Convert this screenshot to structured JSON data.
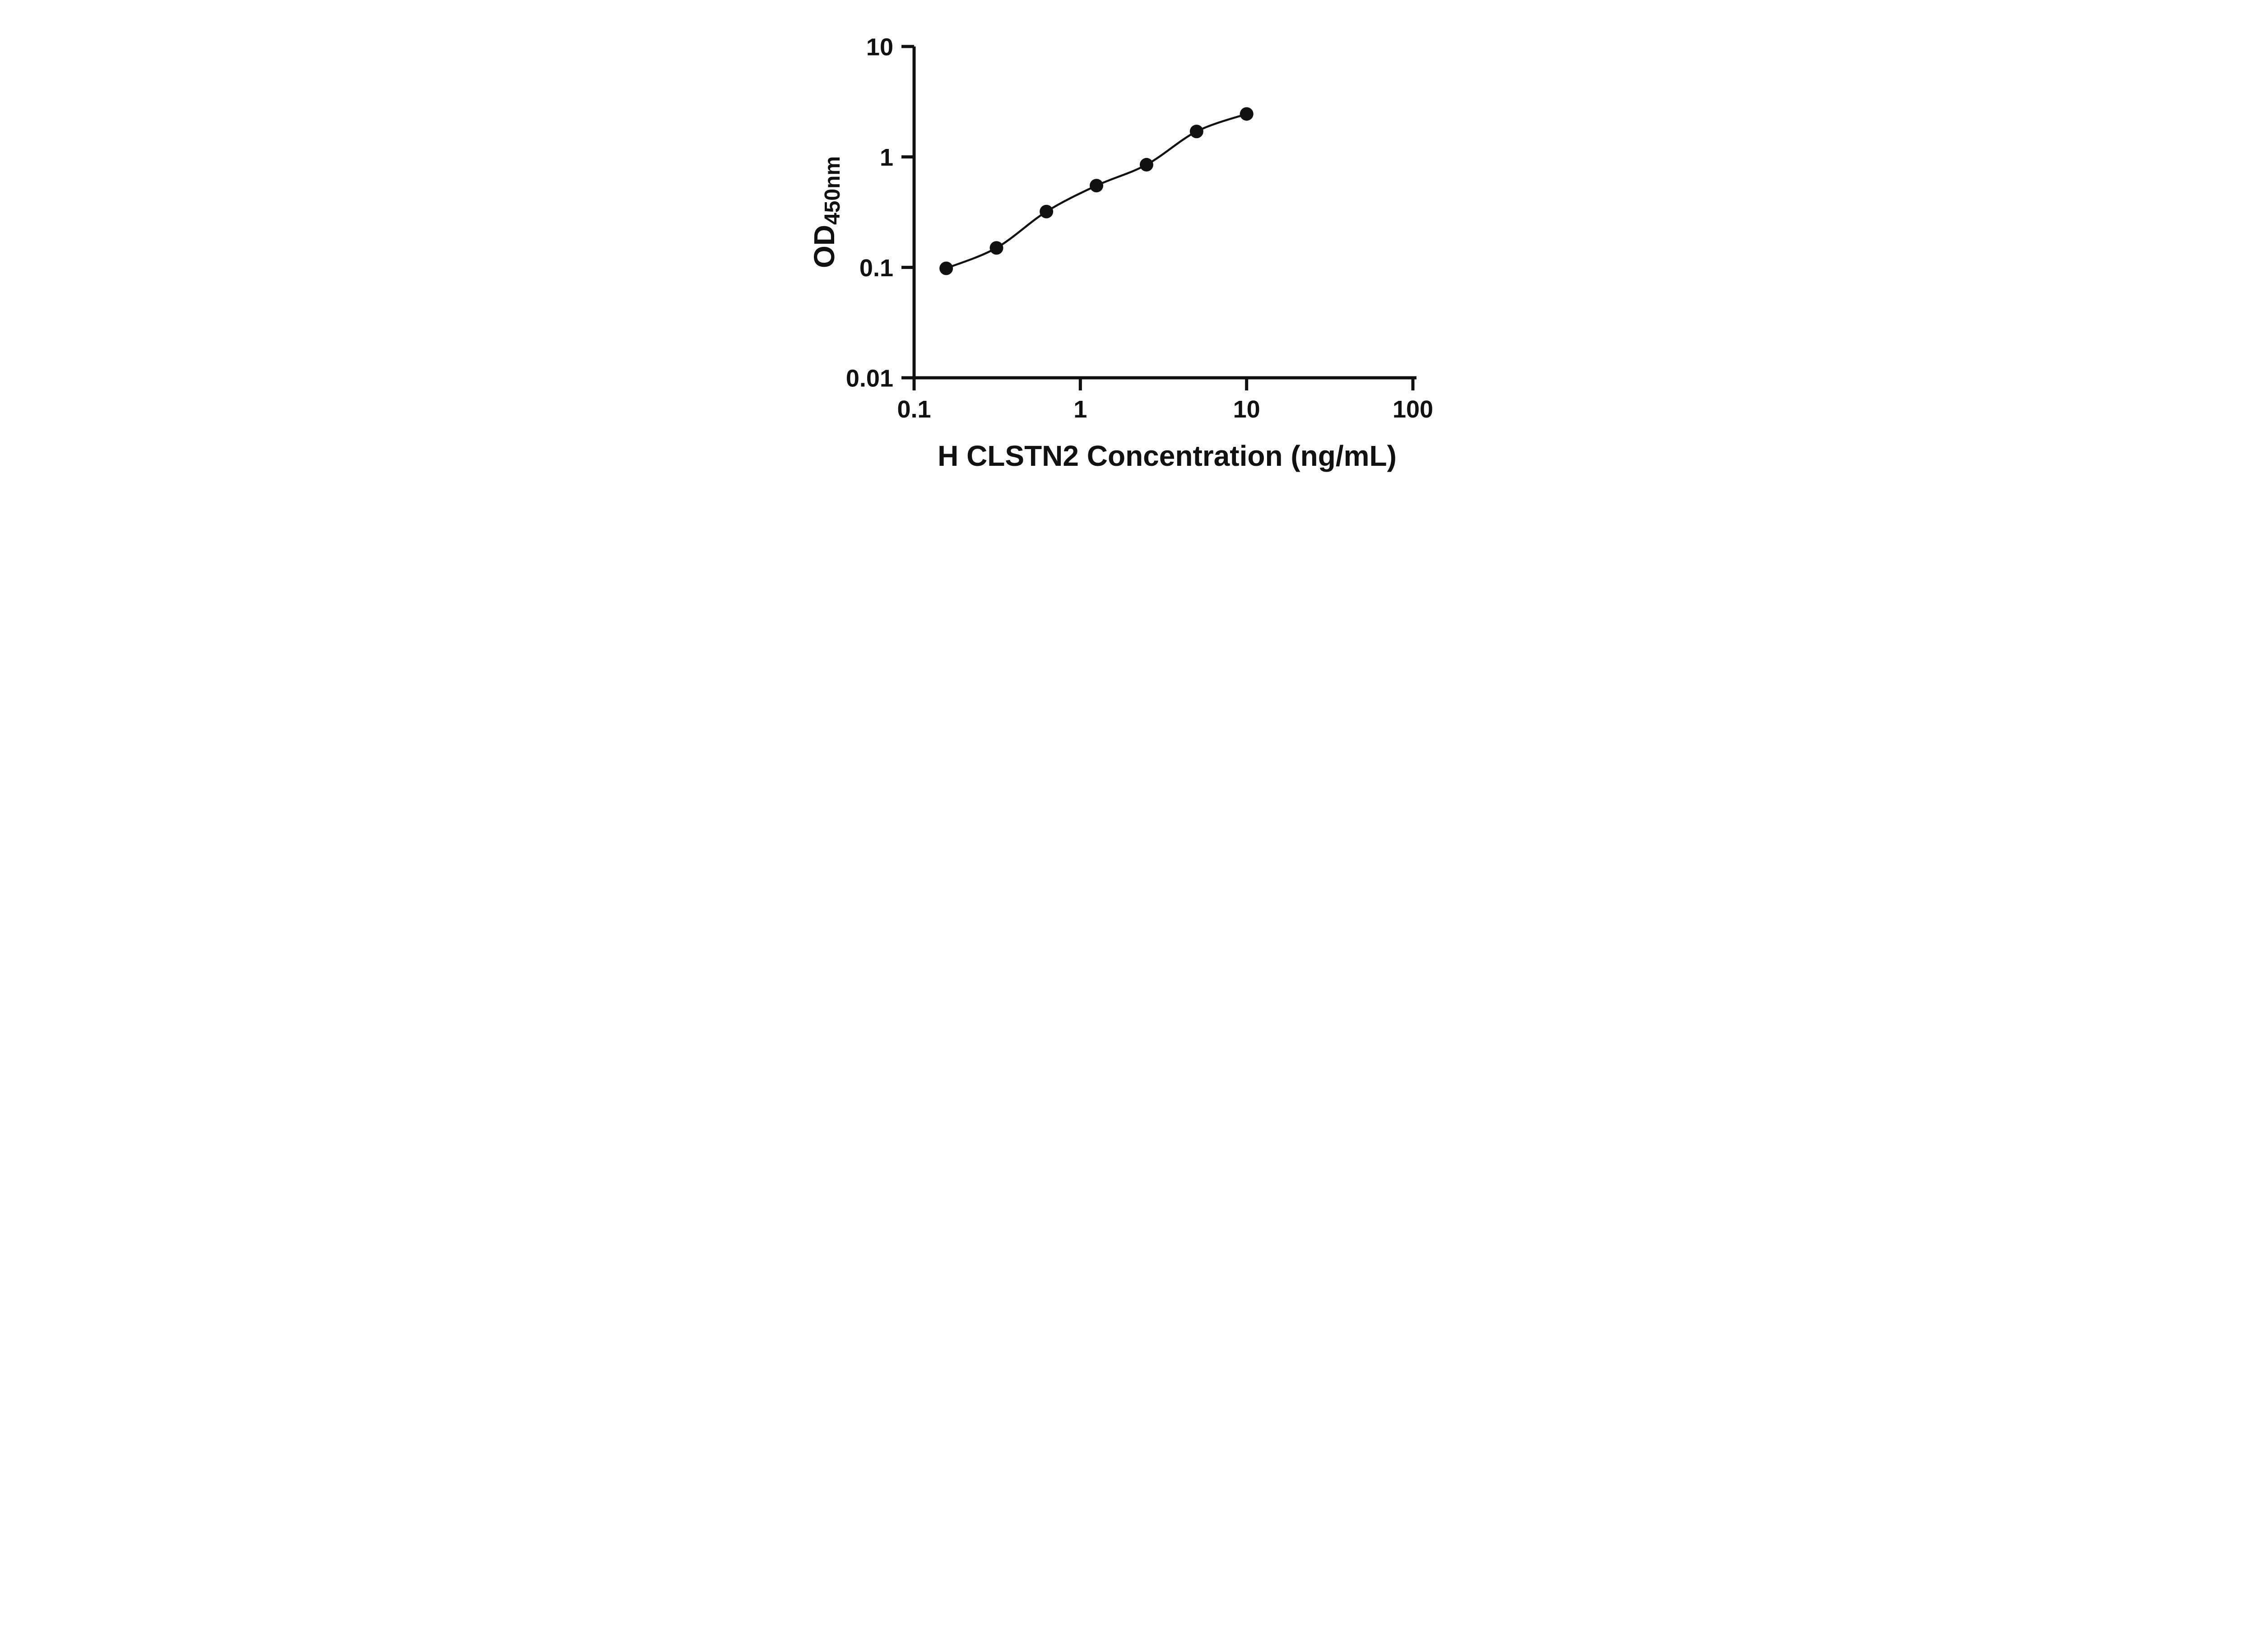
{
  "figure": {
    "background": "#ffffff"
  },
  "chart_data": {
    "type": "scatter",
    "title": "",
    "xlabel": "H CLSTN2 Concentration (ng/mL)",
    "ylabel": "OD450nm",
    "ylabel_main": "OD",
    "ylabel_sub": "450nm",
    "x_scale": "log",
    "y_scale": "log",
    "xlim": [
      0.1,
      100
    ],
    "ylim": [
      0.01,
      10
    ],
    "x_ticks": [
      "0.1",
      "1",
      "10",
      "100"
    ],
    "y_ticks": [
      "0.01",
      "0.1",
      "1",
      "10"
    ],
    "x": [
      0.156,
      0.313,
      0.625,
      1.25,
      2.5,
      5,
      10
    ],
    "y": [
      0.098,
      0.15,
      0.32,
      0.55,
      0.85,
      1.7,
      2.45
    ],
    "grid": false,
    "legend_position": "none",
    "marker_color": "#111111",
    "line_color": "#111111",
    "axis_color": "#111111"
  }
}
